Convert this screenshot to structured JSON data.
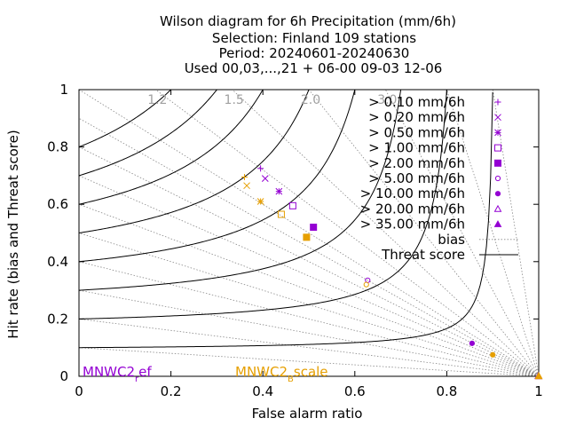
{
  "chart_data": {
    "type": "scatter",
    "title_lines": [
      "Wilson diagram  for 6h Precipitation (mm/6h)",
      "Selection: Finland    109 stations",
      "Period: 20240601-20240630",
      "Used 00,03,...,21 + 06-00 09-03 12-06"
    ],
    "xlabel": "False alarm ratio",
    "ylabel": "Hit rate (bias and Threat score)",
    "xlim": [
      0,
      1
    ],
    "ylim": [
      0,
      1
    ],
    "x_ticks": [
      0,
      0.2,
      0.4,
      0.6,
      0.8,
      1
    ],
    "x_tick_labels": [
      "0",
      "0.2",
      "0.4",
      "0.6",
      "0.8",
      "1"
    ],
    "y_ticks": [
      0,
      0.2,
      0.4,
      0.6,
      0.8,
      1
    ],
    "y_tick_labels": [
      "0",
      "0.2",
      "0.4",
      "0.6",
      "0.8",
      "1"
    ],
    "bias_values": [
      0.1,
      0.2,
      0.3,
      0.4,
      0.5,
      0.6,
      0.7,
      0.8,
      0.9,
      1.0,
      1.2,
      1.5,
      2.0,
      3.0,
      5.0,
      10.0
    ],
    "bias_labels": [
      {
        "bias": 1.2,
        "text": "1.2"
      },
      {
        "bias": 1.5,
        "text": "1.5"
      },
      {
        "bias": 2.0,
        "text": "2.0"
      },
      {
        "bias": 3.0,
        "text": "3.0"
      }
    ],
    "threat_score_values": [
      0.1,
      0.2,
      0.3,
      0.4,
      0.5,
      0.6,
      0.7,
      0.8
    ],
    "legend": {
      "placement": "top-right",
      "thresholds": [
        {
          "label": "> 0.10 mm/6h",
          "symbol": "plus"
        },
        {
          "label": "> 0.20 mm/6h",
          "symbol": "cross"
        },
        {
          "label": "> 0.50 mm/6h",
          "symbol": "star"
        },
        {
          "label": "> 1.00 mm/6h",
          "symbol": "open-square"
        },
        {
          "label": "> 2.00 mm/6h",
          "symbol": "filled-square"
        },
        {
          "label": "> 5.00 mm/6h",
          "symbol": "open-circle"
        },
        {
          "label": "> 10.00 mm/6h",
          "symbol": "filled-circle"
        },
        {
          "label": "> 20.00 mm/6h",
          "symbol": "open-triangle"
        },
        {
          "label": "> 35.00 mm/6h",
          "symbol": "filled-triangle"
        }
      ],
      "bias_entry": "bias",
      "threat_entry": "Threat score"
    },
    "series": [
      {
        "name": "MNWC2_ref",
        "label_main": "MNWC2",
        "label_sub": "r",
        "label_tail": "ef",
        "color": "#9400d3",
        "points": [
          {
            "symbol": "plus",
            "x": 0.395,
            "y": 0.725
          },
          {
            "symbol": "cross",
            "x": 0.405,
            "y": 0.69
          },
          {
            "symbol": "star",
            "x": 0.435,
            "y": 0.645
          },
          {
            "symbol": "open-square",
            "x": 0.465,
            "y": 0.595
          },
          {
            "symbol": "filled-square",
            "x": 0.51,
            "y": 0.52
          },
          {
            "symbol": "open-circle",
            "x": 0.628,
            "y": 0.335
          },
          {
            "symbol": "filled-circle",
            "x": 0.855,
            "y": 0.115
          },
          {
            "symbol": "open-triangle",
            "x": 0.999,
            "y": 0.001
          },
          {
            "symbol": "filled-triangle",
            "x": 1.0,
            "y": 0.0
          }
        ]
      },
      {
        "name": "MNWC2_Bscale",
        "label_main": "MNWC2",
        "label_sub": "B",
        "label_tail": "scale",
        "color": "#e69f00",
        "points": [
          {
            "symbol": "plus",
            "x": 0.36,
            "y": 0.695
          },
          {
            "symbol": "cross",
            "x": 0.365,
            "y": 0.665
          },
          {
            "symbol": "star",
            "x": 0.395,
            "y": 0.61
          },
          {
            "symbol": "open-square",
            "x": 0.44,
            "y": 0.565
          },
          {
            "symbol": "filled-square",
            "x": 0.495,
            "y": 0.485
          },
          {
            "symbol": "open-circle",
            "x": 0.625,
            "y": 0.32
          },
          {
            "symbol": "filled-circle",
            "x": 0.9,
            "y": 0.075
          },
          {
            "symbol": "open-triangle",
            "x": 1.0,
            "y": 0.002
          },
          {
            "symbol": "filled-triangle",
            "x": 1.0,
            "y": 0.0
          }
        ]
      }
    ]
  }
}
